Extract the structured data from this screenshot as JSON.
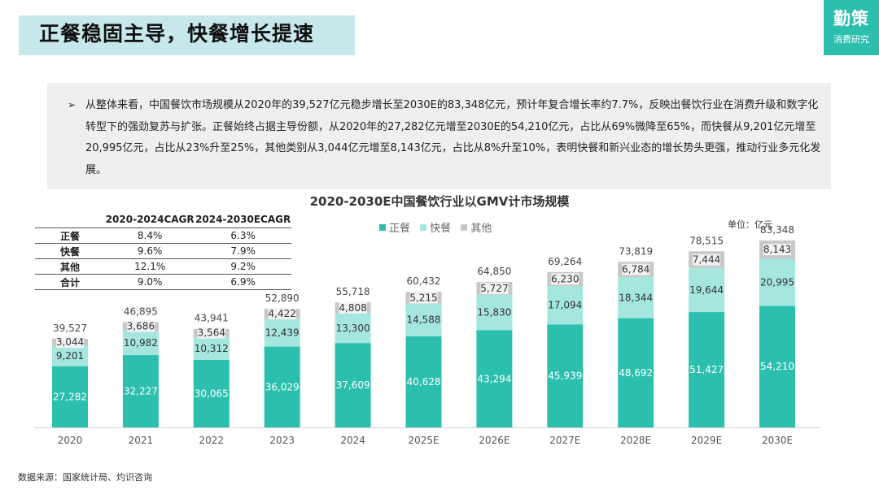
{
  "header": {
    "title": "正餐稳固主导，快餐增长提速",
    "logo_main": "勤策",
    "logo_sub": "消费研究"
  },
  "summary": {
    "bullet": "➢",
    "text": "从整体来看，中国餐饮市场规模从2020年的39,527亿元稳步增长至2030E的83,348亿元，预计年复合增长率约7.7%，反映出餐饮行业在消费升级和数字化转型下的强劲复苏与扩张。正餐始终占据主导份额，从2020年的27,282亿元增至2030E的54,210亿元，占比从69%微降至65%，而快餐从9,201亿元增至20,995亿元，占比从23%升至25%，其他类别从3,044亿元增至8,143亿元，占比从8%升至10%，表明快餐和新兴业态的增长势头更强，推动行业多元化发展。"
  },
  "table": {
    "headers": [
      "",
      "2020-2024CAGR",
      "2024-2030ECAGR"
    ],
    "rows": [
      {
        "label": "正餐",
        "c1": "8.4%",
        "c2": "6.3%"
      },
      {
        "label": "快餐",
        "c1": "9.6%",
        "c2": "7.9%"
      },
      {
        "label": "其他",
        "c1": "12.1%",
        "c2": "9.2%"
      },
      {
        "label": "合计",
        "c1": "9.0%",
        "c2": "6.9%"
      }
    ]
  },
  "unit_label": "单位：亿元",
  "source": "数据来源：国家统计局、灼识咨询",
  "colors": {
    "zhengcan": "#2cbfae",
    "kuaican": "#a5e6df",
    "qita": "#c8c8c8",
    "accent": "#2cbfae",
    "title_bg": "#c6e8ea"
  },
  "chart_data": {
    "type": "bar",
    "stacked": true,
    "title": "2020-2030E中国餐饮行业以GMV计市场规模",
    "xlabel": "",
    "ylabel": "",
    "ylim": [
      0,
      87000
    ],
    "categories": [
      "2020",
      "2021",
      "2022",
      "2023",
      "2024",
      "2025E",
      "2026E",
      "2027E",
      "2028E",
      "2029E",
      "2030E"
    ],
    "series": [
      {
        "name": "正餐",
        "values": [
          27282,
          32227,
          30065,
          36029,
          37609,
          40628,
          43294,
          45939,
          48692,
          51427,
          54210
        ]
      },
      {
        "name": "快餐",
        "values": [
          9201,
          10982,
          10312,
          12439,
          13300,
          14588,
          15830,
          17094,
          18344,
          19644,
          20995
        ]
      },
      {
        "name": "其他",
        "values": [
          3044,
          3686,
          3564,
          4422,
          4808,
          5215,
          5727,
          6230,
          6784,
          7444,
          8143
        ]
      }
    ],
    "totals": [
      39527,
      46895,
      43941,
      52890,
      55718,
      60432,
      64850,
      69264,
      73819,
      78515,
      83348
    ],
    "legend_position": "top"
  }
}
